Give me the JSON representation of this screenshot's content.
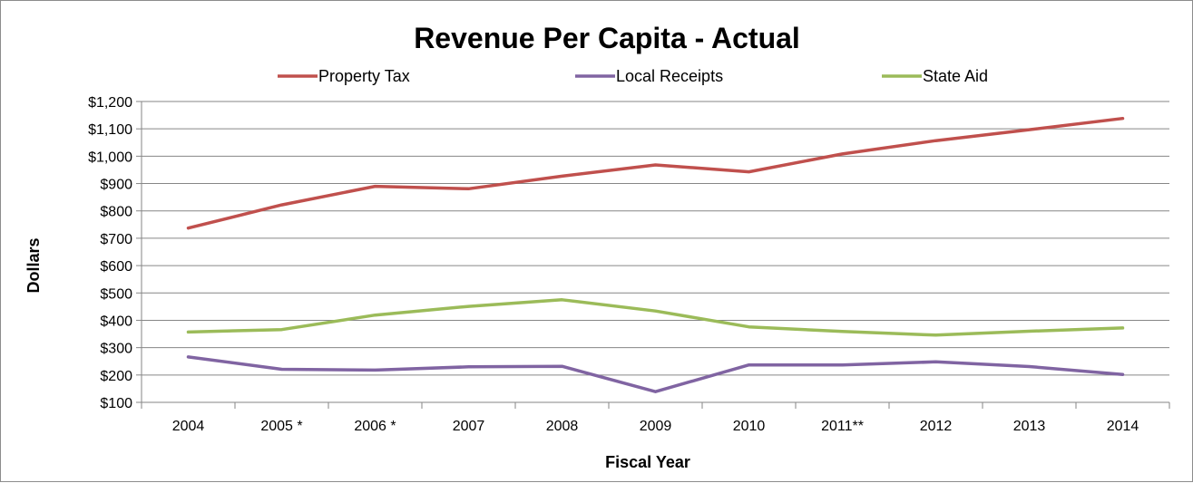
{
  "chart_data": {
    "type": "line",
    "title": "Revenue Per Capita - Actual",
    "xlabel": "Fiscal Year",
    "ylabel": "Dollars",
    "categories": [
      "2004",
      "2005 *",
      "2006 *",
      "2007",
      "2008",
      "2009",
      "2010",
      "2011**",
      "2012",
      "2013",
      "2014"
    ],
    "y_tick_values": [
      100,
      200,
      300,
      400,
      500,
      600,
      700,
      800,
      900,
      1000,
      1100,
      1200
    ],
    "y_tick_labels": [
      "$100",
      "$200",
      "$300",
      "$400",
      "$500",
      "$600",
      "$700",
      "$800",
      "$900",
      "$1,000",
      "$1,100",
      "$1,200"
    ],
    "ylim": [
      100,
      1200
    ],
    "grid": true,
    "legend_position": "top",
    "series": [
      {
        "name": "Property Tax",
        "color": "#c0504d",
        "values": [
          737,
          822,
          890,
          881,
          927,
          968,
          943,
          1008,
          1057,
          1097,
          1138
        ]
      },
      {
        "name": "Local Receipts",
        "color": "#8064a2",
        "values": [
          266,
          221,
          218,
          230,
          232,
          139,
          237,
          237,
          248,
          231,
          202
        ]
      },
      {
        "name": "State Aid",
        "color": "#9bbb59",
        "values": [
          357,
          366,
          419,
          451,
          475,
          434,
          376,
          359,
          346,
          360,
          372
        ]
      }
    ]
  }
}
